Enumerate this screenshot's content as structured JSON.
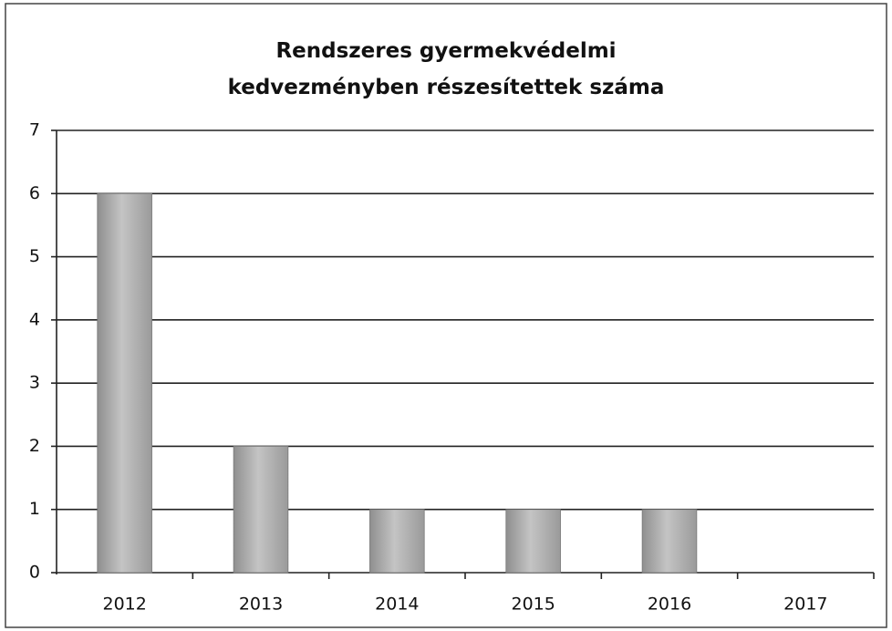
{
  "chart_data": {
    "type": "bar",
    "title": "Rendszeres gyermekvédelmi kedvezményben részesítettek száma",
    "categories": [
      "2012",
      "2013",
      "2014",
      "2015",
      "2016",
      "2017"
    ],
    "values": [
      6,
      2,
      1,
      1,
      1,
      0
    ],
    "color": "#a8a8a8",
    "ylim": [
      0,
      7
    ],
    "yticks": [
      0,
      1,
      2,
      3,
      4,
      5,
      6,
      7
    ],
    "grid": true
  }
}
